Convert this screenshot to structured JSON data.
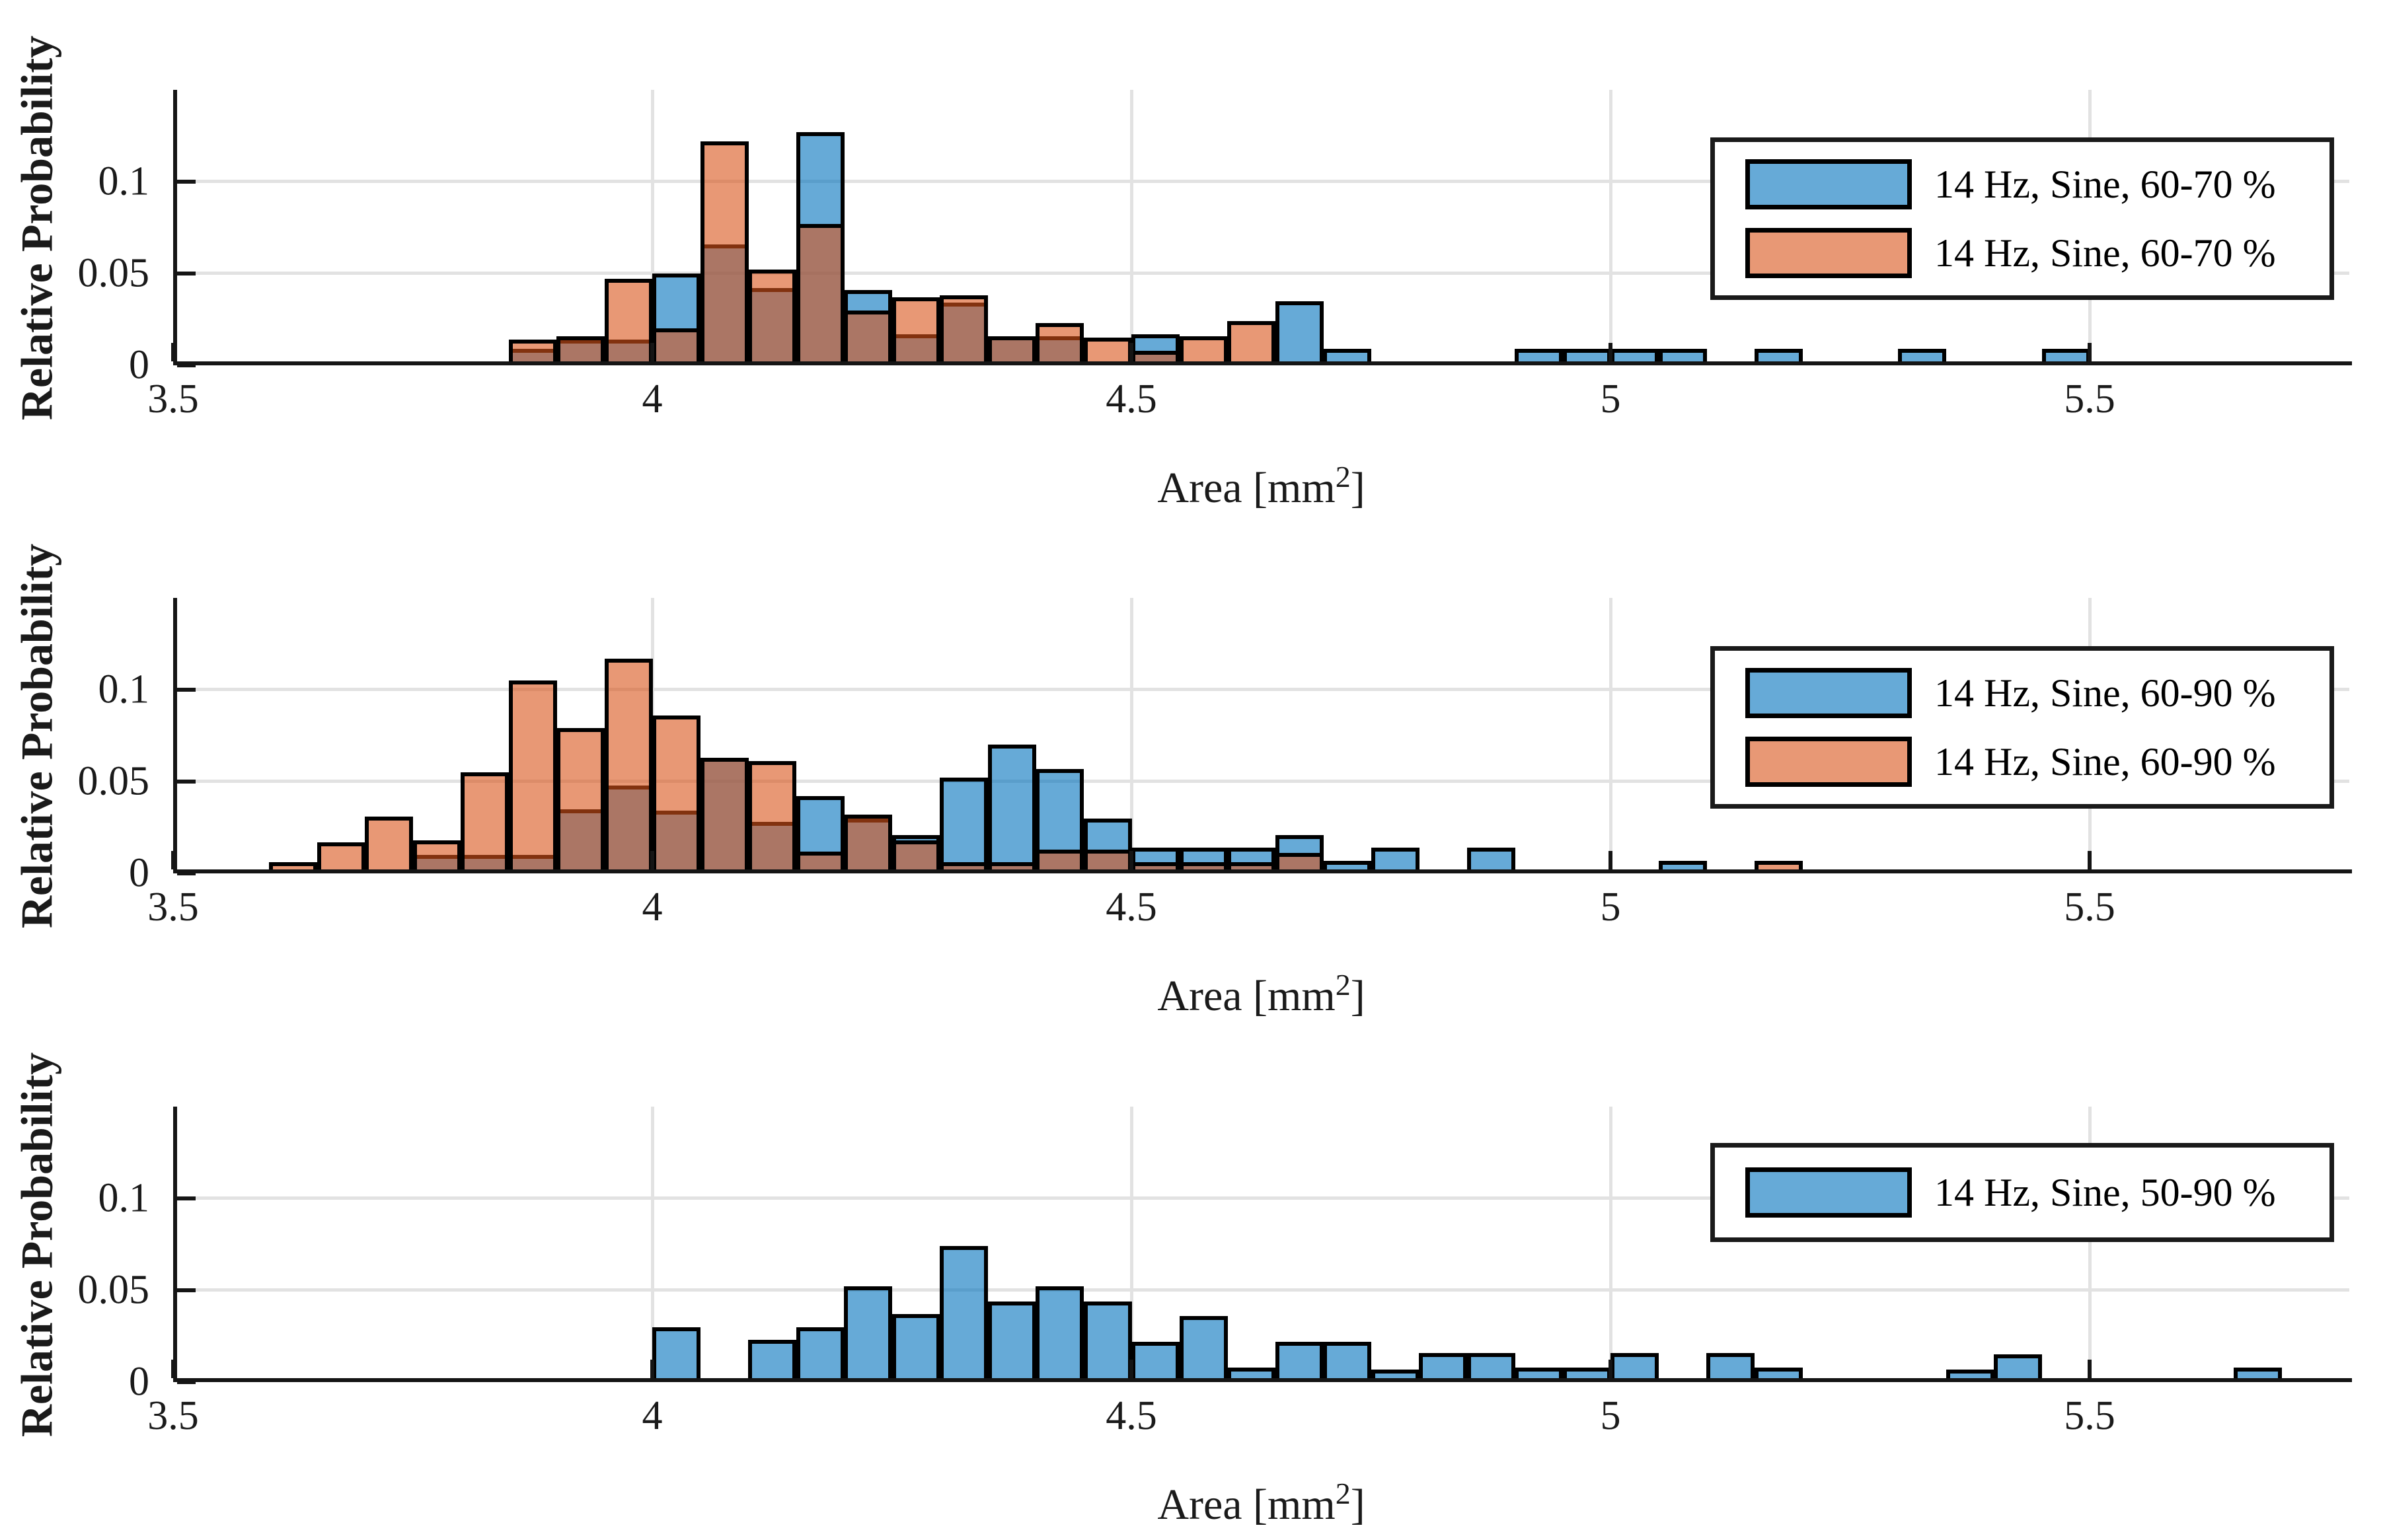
{
  "figure": {
    "background": "#ffffff",
    "grid_color": "#e2e2e2",
    "axis_color": "#151515",
    "edge_color": "#000000",
    "face_alpha": 0.6,
    "blue_base_color": "#0072BD",
    "orange_base_color": "#D95319",
    "blue_on_white": "#65AAD8",
    "orange_on_white": "#E89877",
    "overlap_on_white": "#AB7768"
  },
  "chart_data": [
    {
      "type": "bar",
      "subtype": "overlaid-histogram",
      "title": "",
      "ylabel": "Relative Probability",
      "xlabel": "Area [mm²]",
      "xlabel_pre": "Area [mm",
      "xlabel_sup": "2",
      "xlabel_post": "]",
      "xlim": [
        3.5,
        5.77
      ],
      "ylim": [
        0,
        0.15
      ],
      "bin_width": 0.05,
      "xticks": [
        3.5,
        4,
        4.5,
        5,
        5.5
      ],
      "xtick_labels": [
        "3.5",
        "4",
        "4.5",
        "5",
        "5.5"
      ],
      "yticks": [
        0,
        0.05,
        0.1
      ],
      "ytick_labels": [
        "0",
        "0.05",
        "0.1"
      ],
      "grid": {
        "x": [
          4,
          4.5,
          5,
          5.5
        ],
        "y": [
          0.05,
          0.1
        ]
      },
      "legend_position": "top-right",
      "series": [
        {
          "name": "14 Hz, Sine, 60-70 %",
          "color": "#0072BD",
          "fill": "rgba(0,114,189,0.6)",
          "bins": [
            [
              3.85,
              0.009
            ],
            [
              3.9,
              0.014
            ],
            [
              3.95,
              0.014
            ],
            [
              4.0,
              0.05
            ],
            [
              4.05,
              0.066
            ],
            [
              4.1,
              0.042
            ],
            [
              4.15,
              0.127
            ],
            [
              4.2,
              0.041
            ],
            [
              4.25,
              0.017
            ],
            [
              4.3,
              0.034
            ],
            [
              4.35,
              0.016
            ],
            [
              4.4,
              0.016
            ],
            [
              4.5,
              0.017
            ],
            [
              4.65,
              0.035
            ],
            [
              4.7,
              0.009
            ],
            [
              4.9,
              0.009
            ],
            [
              4.95,
              0.009
            ],
            [
              5.0,
              0.009
            ],
            [
              5.05,
              0.009
            ],
            [
              5.15,
              0.009
            ],
            [
              5.3,
              0.009
            ],
            [
              5.45,
              0.009
            ]
          ]
        },
        {
          "name": "14 Hz, Sine, 60-70 %",
          "color": "#D95319",
          "fill": "rgba(217,83,25,0.6)",
          "bins": [
            [
              3.85,
              0.014
            ],
            [
              3.9,
              0.016
            ],
            [
              3.95,
              0.047
            ],
            [
              4.0,
              0.02
            ],
            [
              4.05,
              0.122
            ],
            [
              4.1,
              0.052
            ],
            [
              4.15,
              0.077
            ],
            [
              4.2,
              0.03
            ],
            [
              4.25,
              0.037
            ],
            [
              4.3,
              0.038
            ],
            [
              4.35,
              0.016
            ],
            [
              4.4,
              0.023
            ],
            [
              4.45,
              0.015
            ],
            [
              4.5,
              0.008
            ],
            [
              4.55,
              0.016
            ],
            [
              4.6,
              0.024
            ]
          ]
        }
      ]
    },
    {
      "type": "bar",
      "subtype": "overlaid-histogram",
      "title": "",
      "ylabel": "Relative Probability",
      "xlabel": "Area [mm²]",
      "xlabel_pre": "Area [mm",
      "xlabel_sup": "2",
      "xlabel_post": "]",
      "xlim": [
        3.5,
        5.77
      ],
      "ylim": [
        0,
        0.15
      ],
      "bin_width": 0.05,
      "xticks": [
        3.5,
        4,
        4.5,
        5,
        5.5
      ],
      "xtick_labels": [
        "3.5",
        "4",
        "4.5",
        "5",
        "5.5"
      ],
      "yticks": [
        0,
        0.05,
        0.1
      ],
      "ytick_labels": [
        "0",
        "0.05",
        "0.1"
      ],
      "grid": {
        "x": [
          4,
          4.5,
          5,
          5.5
        ],
        "y": [
          0.05,
          0.1
        ]
      },
      "legend_position": "top-right",
      "series": [
        {
          "name": "14 Hz, Sine, 60-90 %",
          "color": "#0072BD",
          "fill": "rgba(0,114,189,0.6)",
          "bins": [
            [
              3.75,
              0.01
            ],
            [
              3.8,
              0.01
            ],
            [
              3.85,
              0.01
            ],
            [
              3.9,
              0.035
            ],
            [
              3.95,
              0.048
            ],
            [
              4.0,
              0.034
            ],
            [
              4.05,
              0.063
            ],
            [
              4.1,
              0.028
            ],
            [
              4.15,
              0.042
            ],
            [
              4.2,
              0.03
            ],
            [
              4.25,
              0.021
            ],
            [
              4.3,
              0.052
            ],
            [
              4.35,
              0.07
            ],
            [
              4.4,
              0.057
            ],
            [
              4.45,
              0.03
            ],
            [
              4.5,
              0.014
            ],
            [
              4.55,
              0.014
            ],
            [
              4.6,
              0.014
            ],
            [
              4.65,
              0.021
            ],
            [
              4.7,
              0.007
            ],
            [
              4.75,
              0.014
            ],
            [
              4.85,
              0.014
            ],
            [
              5.05,
              0.007
            ]
          ]
        },
        {
          "name": "14 Hz, Sine, 60-90 %",
          "color": "#D95319",
          "fill": "rgba(217,83,25,0.6)",
          "bins": [
            [
              3.6,
              0.006
            ],
            [
              3.65,
              0.017
            ],
            [
              3.7,
              0.031
            ],
            [
              3.75,
              0.018
            ],
            [
              3.8,
              0.055
            ],
            [
              3.85,
              0.105
            ],
            [
              3.9,
              0.079
            ],
            [
              3.95,
              0.117
            ],
            [
              4.0,
              0.086
            ],
            [
              4.05,
              0.063
            ],
            [
              4.1,
              0.061
            ],
            [
              4.15,
              0.012
            ],
            [
              4.2,
              0.032
            ],
            [
              4.25,
              0.018
            ],
            [
              4.3,
              0.006
            ],
            [
              4.35,
              0.006
            ],
            [
              4.4,
              0.013
            ],
            [
              4.45,
              0.013
            ],
            [
              4.5,
              0.006
            ],
            [
              4.55,
              0.006
            ],
            [
              4.6,
              0.006
            ],
            [
              4.65,
              0.011
            ],
            [
              5.15,
              0.007
            ]
          ]
        }
      ]
    },
    {
      "type": "bar",
      "subtype": "histogram",
      "title": "",
      "ylabel": "Relative Probability",
      "xlabel": "Area [mm²]",
      "xlabel_pre": "Area [mm",
      "xlabel_sup": "2",
      "xlabel_post": "]",
      "xlim": [
        3.5,
        5.77
      ],
      "ylim": [
        0,
        0.15
      ],
      "bin_width": 0.05,
      "xticks": [
        3.5,
        4,
        4.5,
        5,
        5.5
      ],
      "xtick_labels": [
        "3.5",
        "4",
        "4.5",
        "5",
        "5.5"
      ],
      "yticks": [
        0,
        0.05,
        0.1
      ],
      "ytick_labels": [
        "0",
        "0.05",
        "0.1"
      ],
      "grid": {
        "x": [
          4,
          4.5,
          5,
          5.5
        ],
        "y": [
          0.05,
          0.1
        ]
      },
      "legend_position": "top-right",
      "series": [
        {
          "name": "14 Hz, Sine, 50-90 %",
          "color": "#0072BD",
          "fill": "rgba(0,114,189,0.6)",
          "bins": [
            [
              4.0,
              0.03
            ],
            [
              4.1,
              0.023
            ],
            [
              4.15,
              0.03
            ],
            [
              4.2,
              0.052
            ],
            [
              4.25,
              0.037
            ],
            [
              4.3,
              0.074
            ],
            [
              4.35,
              0.044
            ],
            [
              4.4,
              0.052
            ],
            [
              4.45,
              0.044
            ],
            [
              4.5,
              0.022
            ],
            [
              4.55,
              0.036
            ],
            [
              4.6,
              0.008
            ],
            [
              4.65,
              0.022
            ],
            [
              4.7,
              0.022
            ],
            [
              4.75,
              0.007
            ],
            [
              4.8,
              0.016
            ],
            [
              4.85,
              0.016
            ],
            [
              4.9,
              0.008
            ],
            [
              4.95,
              0.008
            ],
            [
              5.0,
              0.016
            ],
            [
              5.1,
              0.016
            ],
            [
              5.15,
              0.008
            ],
            [
              5.35,
              0.007
            ],
            [
              5.4,
              0.015
            ],
            [
              5.65,
              0.008
            ]
          ]
        }
      ]
    }
  ]
}
